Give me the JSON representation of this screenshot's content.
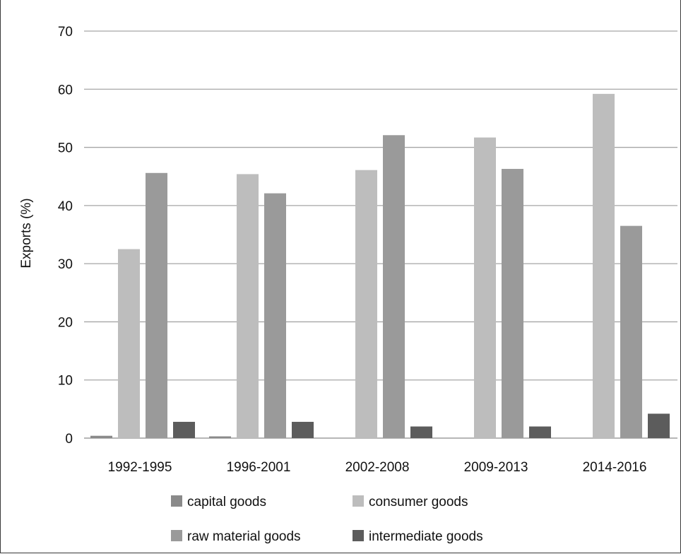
{
  "chart_data": {
    "type": "bar",
    "title": "",
    "xlabel": "",
    "ylabel": "Exports (%)",
    "ylim": [
      0,
      70
    ],
    "yticks": [
      0,
      10,
      20,
      30,
      40,
      50,
      60,
      70
    ],
    "grid": true,
    "legend_position": "bottom",
    "categories": [
      "1992-1995",
      "1996-2001",
      "2002-2008",
      "2009-2013",
      "2014-2016"
    ],
    "series": [
      {
        "name": "capital goods",
        "color": "#8a8a8a",
        "values": [
          0.4,
          0.3,
          0,
          0,
          0
        ]
      },
      {
        "name": "consumer goods",
        "color": "#bdbdbd",
        "values": [
          32.5,
          45.4,
          46.1,
          51.7,
          59.2
        ]
      },
      {
        "name": "raw material goods",
        "color": "#9a9a9a",
        "values": [
          45.6,
          42.1,
          52.1,
          46.3,
          36.5
        ]
      },
      {
        "name": "intermediate goods",
        "color": "#5c5c5c",
        "values": [
          2.8,
          2.8,
          2.0,
          2.0,
          4.2
        ]
      }
    ]
  }
}
